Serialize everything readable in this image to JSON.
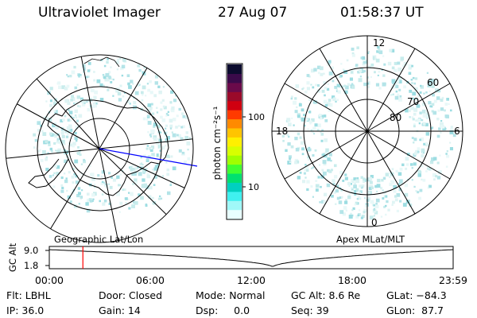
{
  "header": {
    "title": "Ultraviolet Imager",
    "date": "27 Aug 07",
    "time": "01:58:37 UT"
  },
  "colorbar": {
    "label": "photon cm⁻²s⁻¹",
    "ticks": [
      "100",
      "10"
    ],
    "colors": [
      "#0b0b2e",
      "#3a0a4a",
      "#6a0a4a",
      "#9a0a2a",
      "#d00010",
      "#ff3a00",
      "#ff8a00",
      "#ffc400",
      "#fff000",
      "#d8ff00",
      "#a0ff00",
      "#40ff30",
      "#00e070",
      "#00d0c0",
      "#40f0f0",
      "#a0f8f8",
      "#e8ffff"
    ]
  },
  "left_panel": {
    "label": "Geographic Lat/Lon"
  },
  "right_panel": {
    "label": "Apex MLat/MLT",
    "hours": {
      "top": "12",
      "left": "18",
      "right": "6",
      "bottom": "0"
    },
    "lat_labels": [
      "60",
      "70",
      "80"
    ]
  },
  "timeline": {
    "ylabel": "GC Alt",
    "y_ticks": [
      "9.0",
      "1.8"
    ],
    "x_ticks": [
      "00:00",
      "06:00",
      "12:00",
      "18:00",
      "23:59"
    ],
    "current_time_fraction": 0.0832,
    "marker_color": "#ff0000"
  },
  "status": [
    [
      "Flt: LBHL",
      "Door: Closed",
      "Mode: Normal",
      "GC Alt: 8.6 Re",
      "GLat: −84.3"
    ],
    [
      "IP: 36.0",
      "Gain: 14",
      "Dsp:     0.0",
      "Seq: 39",
      "GLon:  87.7"
    ]
  ]
}
